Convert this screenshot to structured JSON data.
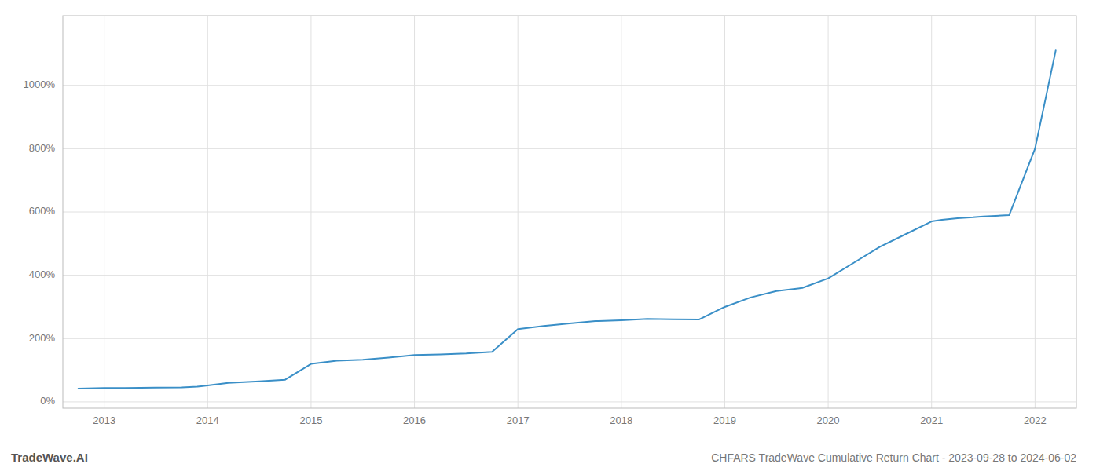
{
  "chart_data": {
    "type": "line",
    "title": "CHFARS TradeWave Cumulative Return Chart - 2023-09-28 to 2024-06-02",
    "annotations": [
      "TradeWave.AI"
    ],
    "x": [
      2012.75,
      2013.0,
      2013.2,
      2013.5,
      2013.75,
      2013.9,
      2014.0,
      2014.2,
      2014.5,
      2014.75,
      2015.0,
      2015.25,
      2015.5,
      2015.75,
      2016.0,
      2016.25,
      2016.5,
      2016.75,
      2017.0,
      2017.25,
      2017.5,
      2017.75,
      2018.0,
      2018.25,
      2018.5,
      2018.75,
      2019.0,
      2019.25,
      2019.5,
      2019.75,
      2020.0,
      2020.25,
      2020.5,
      2020.75,
      2021.0,
      2021.1,
      2021.25,
      2021.4,
      2021.5,
      2021.75,
      2022.0,
      2022.2
    ],
    "values": [
      42,
      44,
      44,
      45,
      46,
      48,
      52,
      60,
      65,
      70,
      120,
      130,
      133,
      140,
      148,
      150,
      153,
      158,
      230,
      240,
      248,
      255,
      258,
      262,
      261,
      260,
      300,
      330,
      350,
      360,
      390,
      440,
      490,
      530,
      570,
      575,
      580,
      583,
      586,
      590,
      800,
      1110
    ],
    "color": "#3a8fc7",
    "grid": true,
    "xlim": [
      2012.6,
      2022.4
    ],
    "xticks": [
      2013,
      2014,
      2015,
      2016,
      2017,
      2018,
      2019,
      2020,
      2021,
      2022
    ],
    "ylim": [
      -20,
      1220
    ],
    "yticks": [
      {
        "value": 0,
        "label": "0%"
      },
      {
        "value": 200,
        "label": "200%"
      },
      {
        "value": 400,
        "label": "400%"
      },
      {
        "value": 600,
        "label": "600%"
      },
      {
        "value": 800,
        "label": "800%"
      },
      {
        "value": 1000,
        "label": "1000%"
      }
    ]
  }
}
